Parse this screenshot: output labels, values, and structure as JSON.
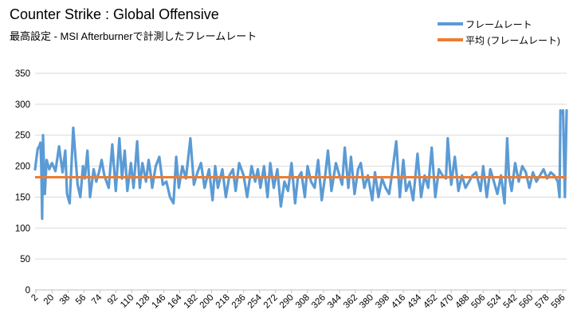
{
  "chart_data": {
    "type": "line",
    "title": "Counter Strike : Global Offensive",
    "subtitle": "最高設定  - MSI Afterburnerで計測したフレームレート",
    "xlabel": "",
    "ylabel": "",
    "ylim": [
      0,
      350
    ],
    "yticks": [
      0,
      50,
      100,
      150,
      200,
      250,
      300,
      350
    ],
    "xlim": [
      1,
      600
    ],
    "xticks": [
      2,
      20,
      38,
      56,
      74,
      92,
      110,
      128,
      146,
      164,
      182,
      200,
      218,
      236,
      254,
      272,
      290,
      308,
      326,
      344,
      362,
      380,
      398,
      416,
      434,
      452,
      470,
      488,
      506,
      524,
      542,
      560,
      578,
      596
    ],
    "grid": true,
    "legend_position": "top-right",
    "series": [
      {
        "name": "フレームレート",
        "color": "#5B9BD5",
        "x": [
          1,
          4,
          6,
          7,
          8,
          9,
          10,
          12,
          14,
          17,
          20,
          24,
          28,
          32,
          35,
          37,
          40,
          44,
          49,
          52,
          55,
          57,
          60,
          63,
          67,
          70,
          73,
          76,
          79,
          84,
          88,
          92,
          96,
          99,
          102,
          105,
          109,
          112,
          116,
          119,
          122,
          126,
          129,
          131,
          133,
          137,
          141,
          145,
          149,
          153,
          157,
          160,
          163,
          167,
          171,
          176,
          180,
          184,
          188,
          192,
          197,
          201,
          204,
          207,
          212,
          216,
          220,
          224,
          227,
          231,
          236,
          240,
          245,
          249,
          252,
          255,
          259,
          263,
          266,
          270,
          274,
          278,
          282,
          286,
          290,
          294,
          297,
          301,
          305,
          308,
          312,
          316,
          320,
          324,
          328,
          331,
          335,
          340,
          343,
          347,
          350,
          354,
          357,
          361,
          365,
          368,
          372,
          376,
          381,
          384,
          388,
          392,
          396,
          400,
          404,
          408,
          412,
          416,
          419,
          423,
          427,
          432,
          436,
          440,
          444,
          448,
          452,
          456,
          460,
          464,
          466,
          470,
          474,
          478,
          482,
          486,
          490,
          494,
          498,
          503,
          506,
          510,
          514,
          518,
          522,
          526,
          530,
          533,
          535,
          538,
          542,
          546,
          550,
          554,
          558,
          562,
          566,
          570,
          574,
          578,
          582,
          586,
          590,
          592,
          593,
          594,
          596,
          598,
          600
        ],
        "values": [
          195,
          228,
          233,
          238,
          200,
          115,
          250,
          155,
          210,
          195,
          205,
          192,
          232,
          190,
          225,
          155,
          140,
          262,
          170,
          150,
          200,
          180,
          225,
          150,
          195,
          175,
          190,
          210,
          185,
          165,
          235,
          160,
          245,
          180,
          225,
          160,
          205,
          165,
          240,
          165,
          205,
          175,
          210,
          190,
          165,
          200,
          215,
          170,
          175,
          150,
          140,
          215,
          165,
          200,
          180,
          245,
          170,
          190,
          205,
          165,
          195,
          145,
          200,
          165,
          195,
          150,
          185,
          195,
          160,
          205,
          185,
          150,
          200,
          175,
          195,
          165,
          200,
          150,
          205,
          165,
          195,
          135,
          175,
          160,
          205,
          140,
          180,
          190,
          150,
          200,
          175,
          165,
          210,
          145,
          185,
          225,
          160,
          205,
          190,
          170,
          230,
          165,
          215,
          155,
          195,
          205,
          165,
          185,
          145,
          190,
          150,
          180,
          165,
          155,
          195,
          240,
          150,
          210,
          160,
          175,
          145,
          220,
          150,
          185,
          165,
          230,
          150,
          195,
          185,
          180,
          245,
          170,
          215,
          160,
          185,
          165,
          175,
          185,
          190,
          160,
          200,
          150,
          195,
          175,
          155,
          185,
          140,
          245,
          185,
          160,
          205,
          175,
          200,
          190,
          165,
          190,
          175,
          185,
          195,
          180,
          190,
          185,
          175,
          150,
          290,
          285,
          290,
          150,
          290
        ]
      },
      {
        "name": "平均 (フレームレート)",
        "color": "#ED7D31",
        "values": [
          182
        ]
      }
    ]
  }
}
